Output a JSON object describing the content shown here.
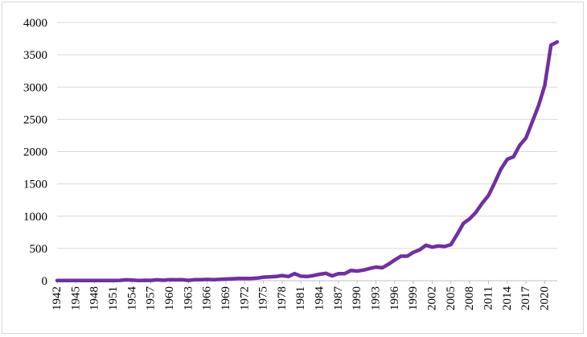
{
  "chart_data": {
    "type": "line",
    "title": "",
    "xlabel": "",
    "ylabel": "",
    "ylim": [
      0,
      4000
    ],
    "y_ticks": [
      "0",
      "500",
      "1000",
      "1500",
      "2000",
      "2500",
      "3000",
      "3500",
      "4000"
    ],
    "x_ticks": [
      "1942",
      "1945",
      "1948",
      "1951",
      "1954",
      "1957",
      "1960",
      "1963",
      "1966",
      "1969",
      "1972",
      "1975",
      "1978",
      "1981",
      "1984",
      "1987",
      "1990",
      "1993",
      "1996",
      "1999",
      "2002",
      "2005",
      "2008",
      "2011",
      "2014",
      "2017",
      "2020"
    ],
    "grid": "horizontal",
    "legend": "none",
    "line_color": "#7030a0",
    "x": [
      1942,
      1943,
      1944,
      1945,
      1946,
      1947,
      1948,
      1949,
      1950,
      1951,
      1952,
      1953,
      1954,
      1955,
      1956,
      1957,
      1958,
      1959,
      1960,
      1961,
      1962,
      1963,
      1964,
      1965,
      1966,
      1967,
      1968,
      1969,
      1970,
      1971,
      1972,
      1973,
      1974,
      1975,
      1976,
      1977,
      1978,
      1979,
      1980,
      1981,
      1982,
      1983,
      1984,
      1985,
      1986,
      1987,
      1988,
      1989,
      1990,
      1991,
      1992,
      1993,
      1994,
      1995,
      1996,
      1997,
      1998,
      1999,
      2000,
      2001,
      2002,
      2003,
      2004,
      2005,
      2006,
      2007,
      2008,
      2009,
      2010,
      2011,
      2012,
      2013,
      2014,
      2015,
      2016,
      2017,
      2018,
      2019,
      2020,
      2021,
      2022
    ],
    "values": [
      2,
      2,
      2,
      2,
      2,
      3,
      2,
      3,
      3,
      4,
      5,
      14,
      10,
      4,
      6,
      5,
      14,
      6,
      15,
      14,
      15,
      5,
      15,
      15,
      20,
      15,
      20,
      25,
      30,
      35,
      35,
      35,
      40,
      55,
      60,
      65,
      80,
      65,
      110,
      70,
      65,
      80,
      100,
      115,
      75,
      110,
      110,
      160,
      150,
      165,
      190,
      210,
      200,
      255,
      320,
      380,
      380,
      440,
      480,
      550,
      520,
      540,
      530,
      560,
      720,
      890,
      960,
      1060,
      1200,
      1320,
      1520,
      1730,
      1880,
      1920,
      2100,
      2210,
      2460,
      2710,
      3020,
      3650,
      3700
    ]
  }
}
